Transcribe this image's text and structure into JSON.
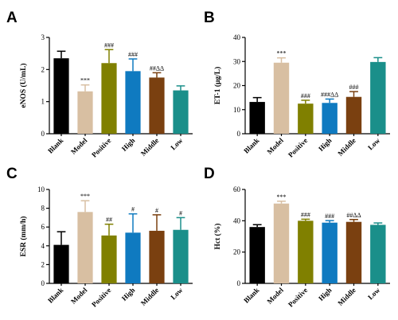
{
  "colors": [
    "#000000",
    "#d8bfa2",
    "#808000",
    "#0f7ac0",
    "#7a4010",
    "#1a8f8a"
  ],
  "chart_data": [
    {
      "type": "bar",
      "panel": "A",
      "ylabel": "eNOS (U/mL)",
      "ylim": [
        0,
        3
      ],
      "yticks": [
        0,
        1,
        2,
        3
      ],
      "categories": [
        "Blank",
        "Model",
        "Positive",
        "High",
        "Middle",
        "Low"
      ],
      "values": [
        2.35,
        1.32,
        2.2,
        1.95,
        1.75,
        1.35
      ],
      "errors": [
        0.22,
        0.2,
        0.42,
        0.38,
        0.15,
        0.14
      ],
      "annotations": [
        "",
        "***",
        "###",
        "###",
        "##ΔΔ",
        ""
      ]
    },
    {
      "type": "bar",
      "panel": "B",
      "ylabel": "ET-1 (μg/L)",
      "ylim": [
        0,
        40
      ],
      "yticks": [
        0,
        10,
        20,
        30,
        40
      ],
      "categories": [
        "Blank",
        "Model",
        "Positive",
        "High",
        "Middle",
        "Low"
      ],
      "values": [
        13.2,
        29.5,
        12.5,
        12.8,
        15.3,
        29.8
      ],
      "errors": [
        1.8,
        2.0,
        1.4,
        1.6,
        2.2,
        1.8
      ],
      "annotations": [
        "",
        "***",
        "###",
        "###ΔΔ",
        "###",
        ""
      ]
    },
    {
      "type": "bar",
      "panel": "C",
      "ylabel": "ESR (mm/h)",
      "ylim": [
        0,
        10
      ],
      "yticks": [
        0,
        2,
        4,
        6,
        8,
        10
      ],
      "categories": [
        "Blank",
        "Model",
        "Positive",
        "High",
        "Middle",
        "Low"
      ],
      "values": [
        4.1,
        7.6,
        5.1,
        5.4,
        5.6,
        5.7
      ],
      "errors": [
        1.4,
        1.2,
        1.2,
        2.0,
        1.7,
        1.3
      ],
      "annotations": [
        "",
        "***",
        "##",
        "#",
        "#",
        "#"
      ]
    },
    {
      "type": "bar",
      "panel": "D",
      "ylabel": "Hct (%)",
      "ylim": [
        0,
        60
      ],
      "yticks": [
        0,
        20,
        40,
        60
      ],
      "categories": [
        "Blank",
        "Model",
        "Positive",
        "High",
        "Middle",
        "Low"
      ],
      "values": [
        36.0,
        51.0,
        40.0,
        38.8,
        39.3,
        37.4
      ],
      "errors": [
        1.5,
        1.5,
        1.0,
        1.3,
        1.5,
        1.2
      ],
      "annotations": [
        "",
        "***",
        "###",
        "###",
        "##ΔΔ",
        ""
      ]
    }
  ]
}
